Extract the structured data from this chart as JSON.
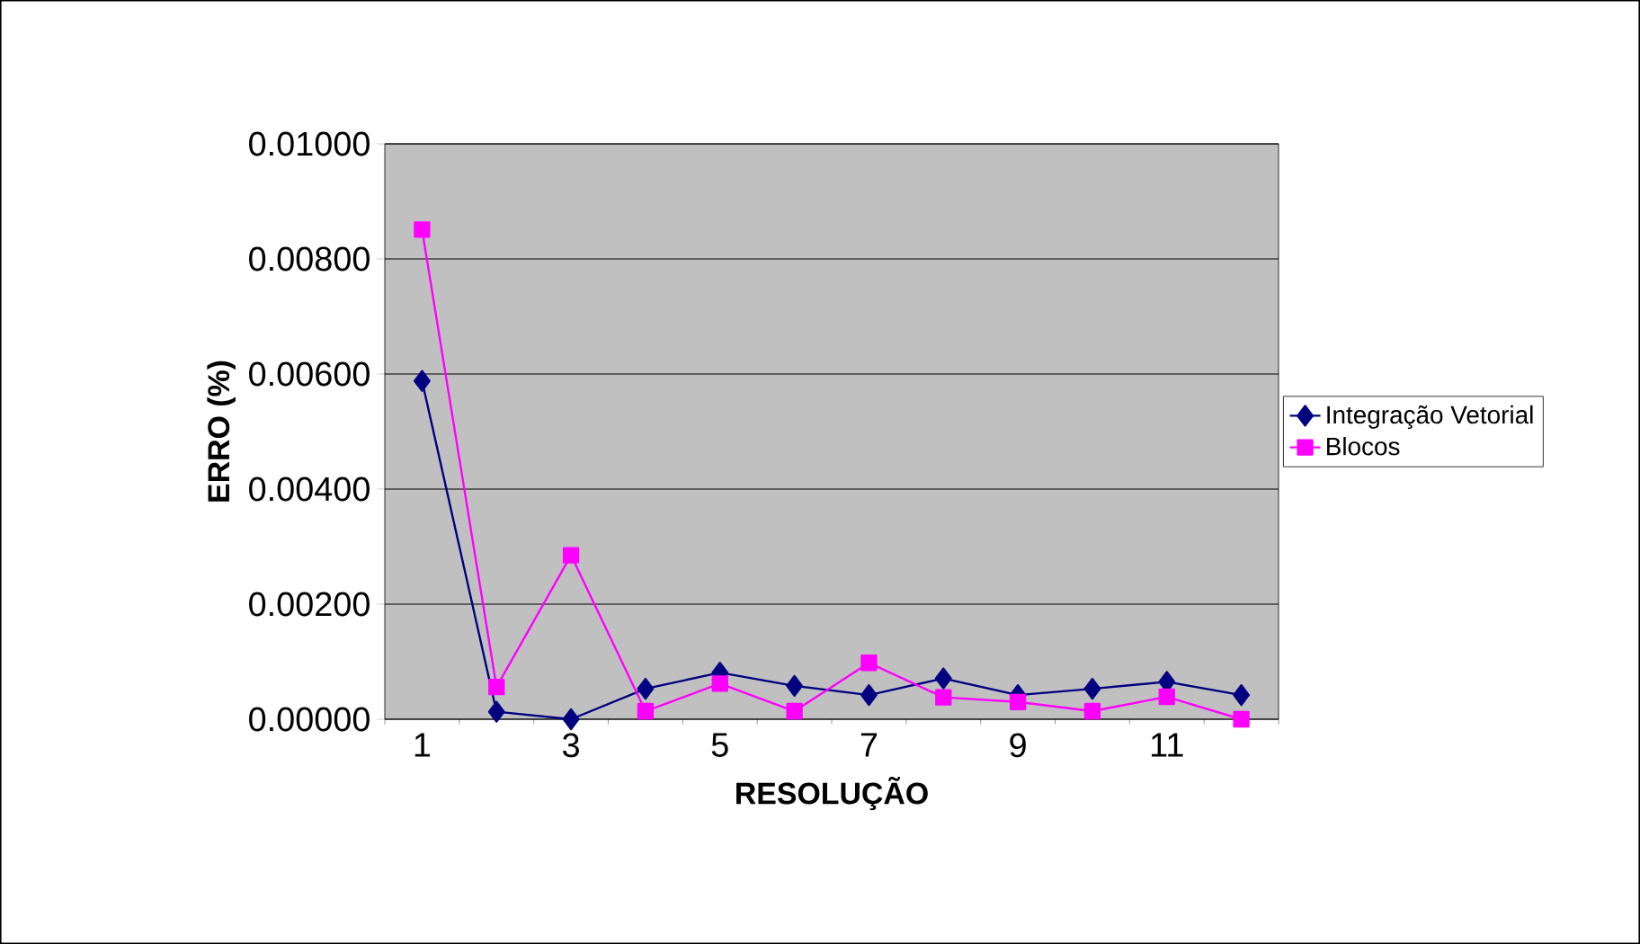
{
  "chart_data": {
    "type": "line",
    "xlabel": "RESOLUÇÃO",
    "ylabel": "ERRO (%)",
    "categories": [
      "1",
      null,
      "3",
      null,
      "5",
      null,
      "7",
      null,
      "9",
      null,
      "11",
      null
    ],
    "series": [
      {
        "name": "Integração Vetorial",
        "color": "#000080",
        "marker": "diamond",
        "values": [
          0.00588,
          0.00013,
          0.0,
          0.00053,
          0.00081,
          0.00058,
          0.00042,
          0.00071,
          0.00042,
          0.00053,
          0.00065,
          0.00042
        ]
      },
      {
        "name": "Blocos",
        "color": "#ff00ff",
        "marker": "square",
        "values": [
          0.00851,
          0.00056,
          0.00285,
          0.00014,
          0.00062,
          0.00014,
          0.00098,
          0.00038,
          0.0003,
          0.00014,
          0.00039,
          0.0
        ]
      }
    ],
    "ylim": [
      0,
      0.01
    ],
    "yticks": [
      {
        "value": 0,
        "label": "0.00000"
      },
      {
        "value": 0.002,
        "label": "0.00200"
      },
      {
        "value": 0.004,
        "label": "0.00400"
      },
      {
        "value": 0.006,
        "label": "0.00600"
      },
      {
        "value": 0.008,
        "label": "0.00800"
      },
      {
        "value": 0.01,
        "label": "0.01000"
      }
    ],
    "grid": "y",
    "legend": "right",
    "line_style": "solid"
  }
}
